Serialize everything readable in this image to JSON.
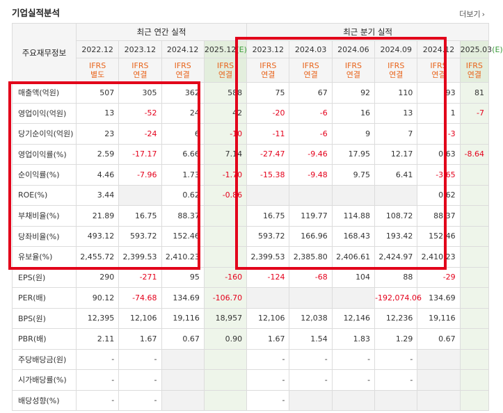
{
  "header": {
    "title": "기업실적분석",
    "more_label": "더보기",
    "more_icon": "chevron-right-icon"
  },
  "columns": {
    "row_header": "주요재무정보",
    "annual_group": "최근 연간 실적",
    "quarter_group": "최근 분기 실적",
    "periods": [
      "2022.12",
      "2023.12",
      "2024.12",
      "2025.12(E)",
      "2023.12",
      "2024.03",
      "2024.06",
      "2024.09",
      "2024.12",
      "2025.03(E)"
    ],
    "ifrs": [
      "IFRS",
      "IFRS",
      "IFRS",
      "IFRS",
      "IFRS",
      "IFRS",
      "IFRS",
      "IFRS",
      "IFRS",
      "IFRS"
    ],
    "basis": [
      "별도",
      "연결",
      "연결",
      "연결",
      "연결",
      "연결",
      "연결",
      "연결",
      "연결",
      "연결"
    ]
  },
  "rows": [
    {
      "label": "매출액(억원)",
      "values": [
        "507",
        "305",
        "362",
        "588",
        "75",
        "67",
        "92",
        "110",
        "93",
        "81"
      ]
    },
    {
      "label": "영업이익(억원)",
      "values": [
        "13",
        "-52",
        "24",
        "42",
        "-20",
        "-6",
        "16",
        "13",
        "1",
        "-7"
      ]
    },
    {
      "label": "당기순이익(억원)",
      "values": [
        "23",
        "-24",
        "6",
        "-10",
        "-11",
        "-6",
        "9",
        "7",
        "-3",
        ""
      ]
    },
    {
      "label": "영업이익률(%)",
      "values": [
        "2.59",
        "-17.17",
        "6.66",
        "7.14",
        "-27.47",
        "-9.46",
        "17.95",
        "12.17",
        "0.63",
        "-8.64"
      ]
    },
    {
      "label": "순이익률(%)",
      "values": [
        "4.46",
        "-7.96",
        "1.73",
        "-1.70",
        "-15.38",
        "-9.48",
        "9.75",
        "6.41",
        "-3.65",
        ""
      ]
    },
    {
      "label": "ROE(%)",
      "values": [
        "3.44",
        "",
        "0.62",
        "-0.86",
        "",
        "",
        "",
        "",
        "0.62",
        ""
      ]
    },
    {
      "label": "부채비율(%)",
      "values": [
        "21.89",
        "16.75",
        "88.37",
        "",
        "16.75",
        "119.77",
        "114.88",
        "108.72",
        "88.37",
        ""
      ]
    },
    {
      "label": "당좌비율(%)",
      "values": [
        "493.12",
        "593.72",
        "152.46",
        "",
        "593.72",
        "166.96",
        "168.43",
        "193.42",
        "152.46",
        ""
      ]
    },
    {
      "label": "유보율(%)",
      "values": [
        "2,455.72",
        "2,399.53",
        "2,410.23",
        "",
        "2,399.53",
        "2,385.80",
        "2,406.61",
        "2,424.97",
        "2,410.23",
        ""
      ]
    },
    {
      "label": "EPS(원)",
      "values": [
        "290",
        "-271",
        "95",
        "-160",
        "-124",
        "-68",
        "104",
        "88",
        "-29",
        ""
      ]
    },
    {
      "label": "PER(배)",
      "values": [
        "90.12",
        "-74.68",
        "134.69",
        "-106.70",
        "",
        "",
        "",
        "-192,074.06",
        "134.69",
        ""
      ]
    },
    {
      "label": "BPS(원)",
      "values": [
        "12,395",
        "12,106",
        "19,116",
        "18,957",
        "12,106",
        "12,038",
        "12,146",
        "12,236",
        "19,116",
        ""
      ]
    },
    {
      "label": "PBR(배)",
      "values": [
        "2.11",
        "1.67",
        "0.67",
        "0.90",
        "1.67",
        "1.54",
        "1.83",
        "1.29",
        "0.67",
        ""
      ]
    },
    {
      "label": "주당배당금(원)",
      "values": [
        "-",
        "-",
        "",
        "",
        "-",
        "-",
        "-",
        "-",
        "",
        ""
      ]
    },
    {
      "label": "시가배당률(%)",
      "values": [
        "-",
        "-",
        "",
        "",
        "-",
        "-",
        "-",
        "-",
        "",
        ""
      ]
    },
    {
      "label": "배당성향(%)",
      "values": [
        "-",
        "-",
        "",
        "",
        "-",
        "",
        "",
        "",
        "",
        ""
      ]
    }
  ],
  "colors": {
    "negative": "#e4001b",
    "ifrs": "#e8641b",
    "estimate_bg": "#eef5ea",
    "highlight_box": "#e2001a"
  }
}
